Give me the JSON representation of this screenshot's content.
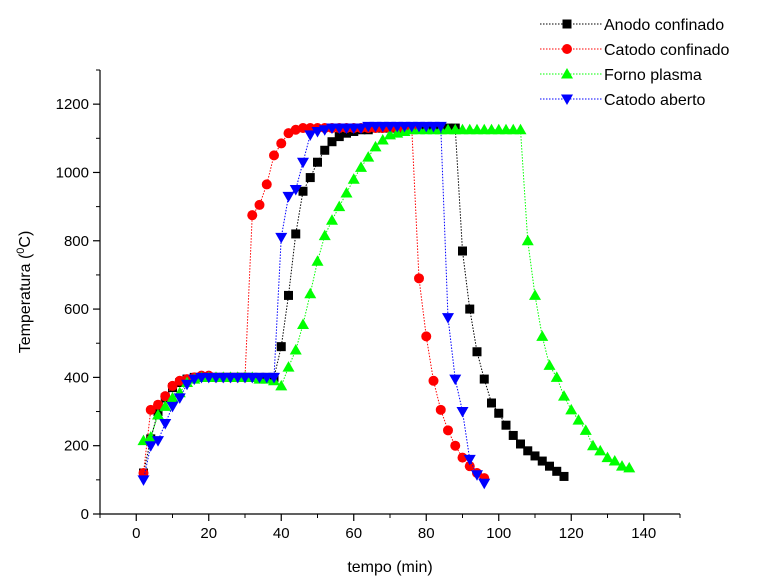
{
  "chart_data": {
    "type": "scatter",
    "title": "",
    "xlabel": "tempo (min)",
    "ylabel_parts": {
      "before": "Temperatura (",
      "sup": "0",
      "after": "C)"
    },
    "xlim": [
      -10,
      150
    ],
    "ylim": [
      0,
      1300
    ],
    "xticks": [
      0,
      20,
      40,
      60,
      80,
      100,
      120,
      140
    ],
    "yticks": [
      0,
      200,
      400,
      600,
      800,
      1000,
      1200
    ],
    "grid": false,
    "legend_position": "top-right",
    "series": [
      {
        "name": "Anodo confinado",
        "color": "#000000",
        "marker": "square",
        "x": [
          2,
          4,
          6,
          8,
          10,
          12,
          14,
          16,
          18,
          20,
          22,
          24,
          26,
          28,
          30,
          32,
          34,
          36,
          38,
          40,
          42,
          44,
          46,
          48,
          50,
          52,
          54,
          56,
          58,
          60,
          62,
          64,
          66,
          68,
          70,
          72,
          74,
          76,
          78,
          80,
          82,
          84,
          86,
          88,
          90,
          92,
          94,
          96,
          98,
          100,
          102,
          104,
          106,
          108,
          110,
          112,
          114,
          116,
          118
        ],
        "y": [
          120,
          220,
          300,
          340,
          370,
          385,
          395,
          400,
          400,
          400,
          400,
          400,
          400,
          400,
          400,
          400,
          400,
          400,
          400,
          490,
          640,
          820,
          945,
          985,
          1030,
          1065,
          1090,
          1105,
          1115,
          1120,
          1125,
          1125,
          1130,
          1130,
          1130,
          1130,
          1130,
          1130,
          1130,
          1130,
          1130,
          1130,
          1130,
          1130,
          770,
          600,
          475,
          395,
          325,
          295,
          260,
          230,
          205,
          185,
          170,
          155,
          140,
          125,
          110
        ]
      },
      {
        "name": "Catodo confinado",
        "color": "#ff0000",
        "marker": "circle",
        "x": [
          2,
          4,
          6,
          8,
          10,
          12,
          14,
          16,
          18,
          20,
          22,
          24,
          26,
          28,
          30,
          32,
          34,
          36,
          38,
          40,
          42,
          44,
          46,
          48,
          50,
          52,
          54,
          56,
          58,
          60,
          62,
          64,
          66,
          68,
          70,
          72,
          74,
          76,
          78,
          80,
          82,
          84,
          86,
          88,
          90,
          92,
          94,
          96
        ],
        "y": [
          120,
          305,
          320,
          345,
          375,
          390,
          395,
          400,
          405,
          405,
          400,
          400,
          400,
          400,
          400,
          875,
          905,
          965,
          1050,
          1085,
          1115,
          1125,
          1130,
          1130,
          1130,
          1130,
          1130,
          1130,
          1130,
          1130,
          1130,
          1130,
          1130,
          1130,
          1130,
          1130,
          1130,
          1130,
          690,
          520,
          390,
          305,
          245,
          200,
          165,
          140,
          120,
          105
        ]
      },
      {
        "name": "Forno plasma",
        "color": "#00ff00",
        "marker": "triangle-up",
        "x": [
          2,
          4,
          6,
          8,
          10,
          12,
          14,
          16,
          18,
          20,
          22,
          24,
          26,
          28,
          30,
          32,
          34,
          36,
          38,
          40,
          42,
          44,
          46,
          48,
          50,
          52,
          54,
          56,
          58,
          60,
          62,
          64,
          66,
          68,
          70,
          72,
          74,
          76,
          78,
          80,
          82,
          84,
          86,
          88,
          90,
          92,
          94,
          96,
          98,
          100,
          102,
          104,
          106,
          108,
          110,
          112,
          114,
          116,
          118,
          120,
          122,
          124,
          126,
          128,
          130,
          132,
          134,
          136
        ],
        "y": [
          215,
          225,
          290,
          315,
          340,
          355,
          385,
          395,
          400,
          400,
          400,
          400,
          400,
          400,
          400,
          400,
          395,
          395,
          390,
          375,
          430,
          480,
          555,
          645,
          740,
          815,
          860,
          900,
          940,
          980,
          1015,
          1045,
          1075,
          1095,
          1110,
          1115,
          1120,
          1125,
          1125,
          1125,
          1125,
          1125,
          1125,
          1125,
          1125,
          1125,
          1125,
          1125,
          1125,
          1125,
          1125,
          1125,
          1125,
          800,
          640,
          520,
          435,
          400,
          345,
          305,
          275,
          245,
          200,
          185,
          165,
          155,
          140,
          135
        ]
      },
      {
        "name": "Catodo aberto",
        "color": "#0000ff",
        "marker": "triangle-down",
        "x": [
          2,
          4,
          6,
          8,
          10,
          12,
          14,
          16,
          18,
          20,
          22,
          24,
          26,
          28,
          30,
          32,
          34,
          36,
          38,
          40,
          42,
          44,
          46,
          48,
          50,
          52,
          54,
          56,
          58,
          60,
          62,
          64,
          66,
          68,
          70,
          72,
          74,
          76,
          78,
          80,
          82,
          84,
          86,
          88,
          90,
          92,
          94,
          96
        ],
        "y": [
          100,
          200,
          215,
          265,
          315,
          340,
          380,
          395,
          400,
          400,
          400,
          400,
          400,
          400,
          400,
          400,
          400,
          400,
          400,
          810,
          930,
          950,
          1030,
          1110,
          1120,
          1125,
          1130,
          1130,
          1130,
          1130,
          1130,
          1135,
          1135,
          1135,
          1135,
          1135,
          1135,
          1135,
          1135,
          1135,
          1135,
          1135,
          575,
          395,
          300,
          160,
          115,
          90
        ]
      }
    ]
  }
}
